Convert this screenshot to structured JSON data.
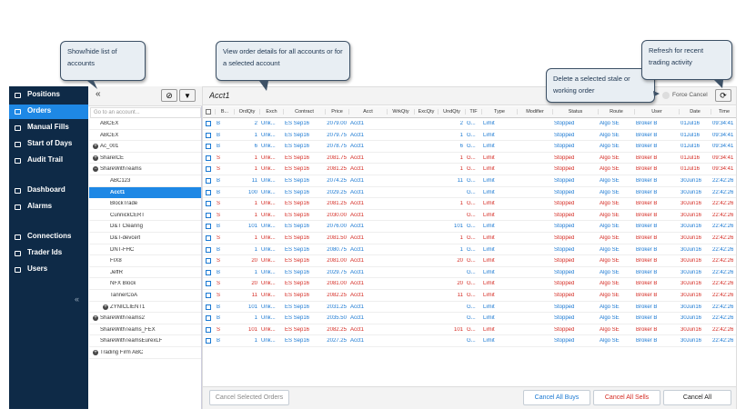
{
  "callouts": [
    {
      "text": "Show/hide list of accounts"
    },
    {
      "text": "View order details for all accounts or for a selected account"
    },
    {
      "text": "Delete a selected stale or working order"
    },
    {
      "text": "Refresh for recent trading activity"
    }
  ],
  "nav": {
    "items": [
      {
        "label": "Positions"
      },
      {
        "label": "Orders",
        "selected": true
      },
      {
        "label": "Manual Fills"
      },
      {
        "label": "Start of Days"
      },
      {
        "label": "Audit Trail"
      },
      {
        "label": "Dashboard"
      },
      {
        "label": "Alarms"
      },
      {
        "label": "Connections"
      },
      {
        "label": "Trader Ids"
      },
      {
        "label": "Users"
      }
    ],
    "collapse": "«"
  },
  "tree": {
    "collapse": "«",
    "search_placeholder": "Go to an account...",
    "rows": [
      {
        "label": "ABCEX",
        "level": 0
      },
      {
        "label": "ABCEX",
        "level": 0
      },
      {
        "label": "Ac_001",
        "level": 0,
        "state": "collapsed"
      },
      {
        "label": "ShareICE",
        "level": 0,
        "state": "collapsed"
      },
      {
        "label": "ShareWithTeams",
        "level": 0,
        "state": "expanded"
      },
      {
        "label": "ABC123",
        "level": 1
      },
      {
        "label": "Acct1",
        "level": 1,
        "selected": true
      },
      {
        "label": "BlockTrade",
        "level": 1
      },
      {
        "label": "CunnickCERT",
        "level": 1
      },
      {
        "label": "D&T Clearing",
        "level": 1
      },
      {
        "label": "D&T-devcert",
        "level": 1
      },
      {
        "label": "DNT-FHC",
        "level": 1
      },
      {
        "label": "FIX8",
        "level": 1
      },
      {
        "label": "JeffR",
        "level": 1
      },
      {
        "label": "NFX Block",
        "level": 1
      },
      {
        "label": "TannerCoA",
        "level": 1
      },
      {
        "label": "ZYNICLIENT1",
        "level": 1,
        "state": "collapsed"
      },
      {
        "label": "ShareWithTeams2",
        "level": 0,
        "state": "collapsed"
      },
      {
        "label": "ShareWithTeams_FEX",
        "level": 0
      },
      {
        "label": "ShareWithTeamsEurexLF",
        "level": 0
      },
      {
        "label": "Trading Firm ABC",
        "level": 0,
        "state": "collapsed"
      }
    ]
  },
  "orders": {
    "title": "Acct1",
    "force_cancel": "Force Cancel",
    "side_colors": {
      "B": "#1a78d2",
      "S": "#d42a22"
    },
    "columns": [
      "B...",
      "OrdQty",
      "Exch",
      "Contract",
      "Price",
      "Acct",
      "WrkQty",
      "ExcQty",
      "UndQty",
      "TIF",
      "Type",
      "Modifier",
      "Status",
      "Route",
      "User",
      "Date",
      "Time"
    ],
    "rows": [
      [
        "B",
        "2",
        "Unk...",
        "ES Sep16",
        "2079.00",
        "Acct1",
        null,
        null,
        "2",
        "G...",
        "Limit",
        null,
        "Stopped",
        "Algo SE",
        "Broker B",
        "01Jul16",
        "09:34:41"
      ],
      [
        "B",
        "1",
        "Unk...",
        "ES Sep16",
        "2079.75",
        "Acct1",
        null,
        null,
        "1",
        "G...",
        "Limit",
        null,
        "Stopped",
        "Algo SE",
        "Broker B",
        "01Jul16",
        "09:34:41"
      ],
      [
        "B",
        "6",
        "Unk...",
        "ES Sep16",
        "2078.75",
        "Acct1",
        null,
        null,
        "6",
        "G...",
        "Limit",
        null,
        "Stopped",
        "Algo SE",
        "Broker B",
        "01Jul16",
        "09:34:41"
      ],
      [
        "S",
        "1",
        "Unk...",
        "ES Sep16",
        "2081.75",
        "Acct1",
        null,
        null,
        "1",
        "G...",
        "Limit",
        null,
        "Stopped",
        "Algo SE",
        "Broker B",
        "01Jul16",
        "09:34:41"
      ],
      [
        "S",
        "1",
        "Unk...",
        "ES Sep16",
        "2081.25",
        "Acct1",
        null,
        null,
        "1",
        "G...",
        "Limit",
        null,
        "Stopped",
        "Algo SE",
        "Broker B",
        "01Jul16",
        "09:34:41"
      ],
      [
        "B",
        "11",
        "Unk...",
        "ES Sep16",
        "2074.25",
        "Acct1",
        null,
        null,
        "11",
        "G...",
        "Limit",
        null,
        "Stopped",
        "Algo SE",
        "Broker B",
        "30Jun16",
        "22:42:26"
      ],
      [
        "B",
        "100",
        "Unk...",
        "ES Sep16",
        "2029.25",
        "Acct1",
        null,
        null,
        null,
        "G...",
        "Limit",
        null,
        "Stopped",
        "Algo SE",
        "Broker B",
        "30Jun16",
        "22:42:26"
      ],
      [
        "S",
        "1",
        "Unk...",
        "ES Sep16",
        "2081.25",
        "Acct1",
        null,
        null,
        "1",
        "G...",
        "Limit",
        null,
        "Stopped",
        "Algo SE",
        "Broker B",
        "30Jun16",
        "22:42:26"
      ],
      [
        "S",
        "1",
        "Unk...",
        "ES Sep16",
        "2030.00",
        "Acct1",
        null,
        null,
        null,
        "G...",
        "Limit",
        null,
        "Stopped",
        "Algo SE",
        "Broker B",
        "30Jun16",
        "22:42:26"
      ],
      [
        "B",
        "101",
        "Unk...",
        "ES Sep16",
        "2076.00",
        "Acct1",
        null,
        null,
        "101",
        "G...",
        "Limit",
        null,
        "Stopped",
        "Algo SE",
        "Broker B",
        "30Jun16",
        "22:42:26"
      ],
      [
        "S",
        "1",
        "Unk...",
        "ES Sep16",
        "2081.50",
        "Acct1",
        null,
        null,
        "1",
        "G...",
        "Limit",
        null,
        "Stopped",
        "Algo SE",
        "Broker B",
        "30Jun16",
        "22:42:26"
      ],
      [
        "B",
        "1",
        "Unk...",
        "ES Sep16",
        "2080.75",
        "Acct1",
        null,
        null,
        "1",
        "G...",
        "Limit",
        null,
        "Stopped",
        "Algo SE",
        "Broker B",
        "30Jun16",
        "22:42:26"
      ],
      [
        "S",
        "20",
        "Unk...",
        "ES Sep16",
        "2081.00",
        "Acct1",
        null,
        null,
        "20",
        "G...",
        "Limit",
        null,
        "Stopped",
        "Algo SE",
        "Broker B",
        "30Jun16",
        "22:42:26"
      ],
      [
        "B",
        "1",
        "Unk...",
        "ES Sep16",
        "2029.75",
        "Acct1",
        null,
        null,
        null,
        "G...",
        "Limit",
        null,
        "Stopped",
        "Algo SE",
        "Broker B",
        "30Jun16",
        "22:42:26"
      ],
      [
        "S",
        "20",
        "Unk...",
        "ES Sep16",
        "2081.00",
        "Acct1",
        null,
        null,
        "20",
        "G...",
        "Limit",
        null,
        "Stopped",
        "Algo SE",
        "Broker B",
        "30Jun16",
        "22:42:26"
      ],
      [
        "S",
        "11",
        "Unk...",
        "ES Sep16",
        "2082.25",
        "Acct1",
        null,
        null,
        "11",
        "G...",
        "Limit",
        null,
        "Stopped",
        "Algo SE",
        "Broker B",
        "30Jun16",
        "22:42:26"
      ],
      [
        "B",
        "101",
        "Unk...",
        "ES Sep16",
        "2031.25",
        "Acct1",
        null,
        null,
        null,
        "G...",
        "Limit",
        null,
        "Stopped",
        "Algo SE",
        "Broker B",
        "30Jun16",
        "22:42:26"
      ],
      [
        "B",
        "1",
        "Unk...",
        "ES Sep16",
        "2035.50",
        "Acct1",
        null,
        null,
        null,
        "G...",
        "Limit",
        null,
        "Stopped",
        "Algo SE",
        "Broker B",
        "30Jun16",
        "22:42:26"
      ],
      [
        "S",
        "101",
        "Unk...",
        "ES Sep16",
        "2082.25",
        "Acct1",
        null,
        null,
        "101",
        "G...",
        "Limit",
        null,
        "Stopped",
        "Algo SE",
        "Broker B",
        "30Jun16",
        "22:42:26"
      ],
      [
        "B",
        "1",
        "Unk...",
        "ES Sep16",
        "2027.25",
        "Acct1",
        null,
        null,
        null,
        "G...",
        "Limit",
        null,
        "Stopped",
        "Algo SE",
        "Broker B",
        "30Jun16",
        "22:42:26"
      ]
    ],
    "buttons": {
      "cancel_selected": "Cancel Selected Orders",
      "cancel_buys": "Cancel All Buys",
      "cancel_sells": "Cancel All Sells",
      "cancel_all": "Cancel All"
    }
  }
}
